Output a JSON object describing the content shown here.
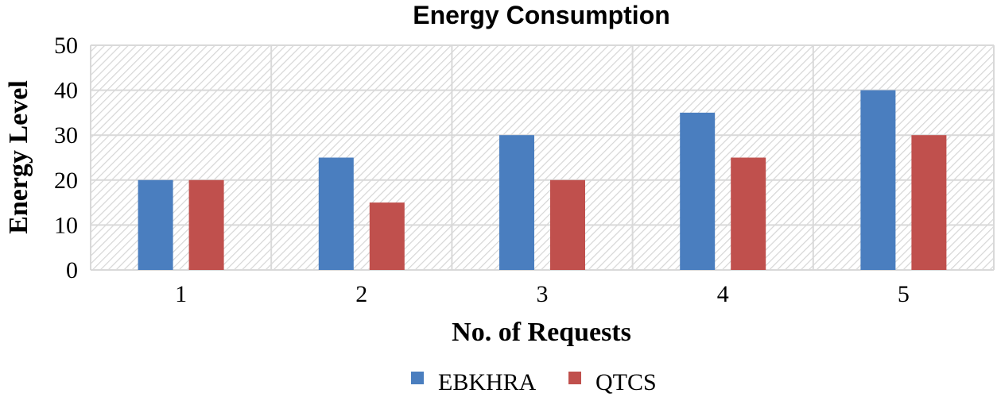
{
  "chart_data": {
    "type": "bar",
    "title": "Energy Consumption",
    "xlabel": "No. of Requests",
    "ylabel": "Energy Level",
    "categories": [
      "1",
      "2",
      "3",
      "4",
      "5"
    ],
    "series": [
      {
        "name": "EBKHRA",
        "color": "#4a7ebf",
        "values": [
          20,
          25,
          30,
          35,
          40
        ]
      },
      {
        "name": "QTCS",
        "color": "#c0504d",
        "values": [
          20,
          15,
          20,
          25,
          30
        ]
      }
    ],
    "ylim": [
      0,
      50
    ],
    "yticks": [
      0,
      10,
      20,
      30,
      40,
      50
    ],
    "grid": true,
    "legend": "bottom-center"
  }
}
